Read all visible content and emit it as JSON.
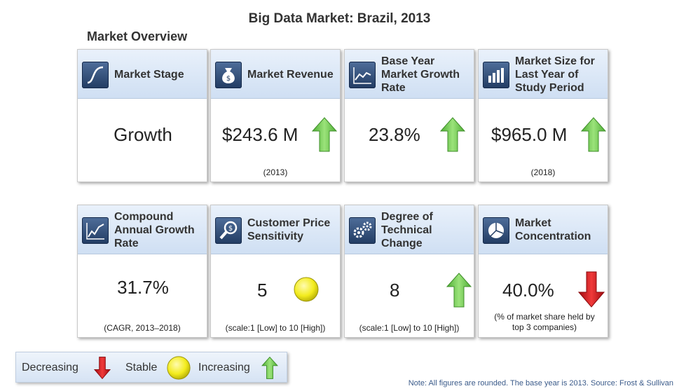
{
  "title": "Big Data Market: Brazil, 2013",
  "subtitle": "Market Overview",
  "cards": [
    {
      "label": "Market Stage",
      "value": "Growth",
      "note": "",
      "indicator": "none",
      "icon": "s-curve-icon"
    },
    {
      "label": "Market Revenue",
      "value": "$243.6 M",
      "note": "(2013)",
      "indicator": "increasing",
      "icon": "money-bag-icon"
    },
    {
      "label": "Base Year Market Growth Rate",
      "value": "23.8%",
      "note": "",
      "indicator": "increasing",
      "icon": "line-chart-icon"
    },
    {
      "label": "Market Size for Last Year of Study Period",
      "value": "$965.0 M",
      "note": "(2018)",
      "indicator": "increasing",
      "icon": "bar-chart-icon"
    },
    {
      "label": "Compound Annual Growth Rate",
      "value": "31.7%",
      "note": "(CAGR, 2013–2018)",
      "indicator": "none",
      "icon": "growth-chart-icon"
    },
    {
      "label": "Customer Price Sensitivity",
      "value": "5",
      "note": "(scale:1 [Low] to 10 [High])",
      "indicator": "stable",
      "icon": "price-search-icon"
    },
    {
      "label": "Degree of Technical Change",
      "value": "8",
      "note": "(scale:1 [Low] to 10 [High])",
      "indicator": "increasing",
      "icon": "gears-icon"
    },
    {
      "label": "Market Concentration",
      "value": "40.0%",
      "note": "(% of market share held by top 3 companies)",
      "indicator": "decreasing",
      "icon": "pie-chart-icon"
    }
  ],
  "legend": {
    "decreasing": "Decreasing",
    "stable": "Stable",
    "increasing": "Increasing"
  },
  "footnote": "Note: All figures are rounded. The base year is 2013. Source: Frost & Sullivan",
  "colors": {
    "increasing": "#7cd35a",
    "decreasing": "#d8141b",
    "stable": "#f0ea2a",
    "header": "#dbe7f6"
  }
}
